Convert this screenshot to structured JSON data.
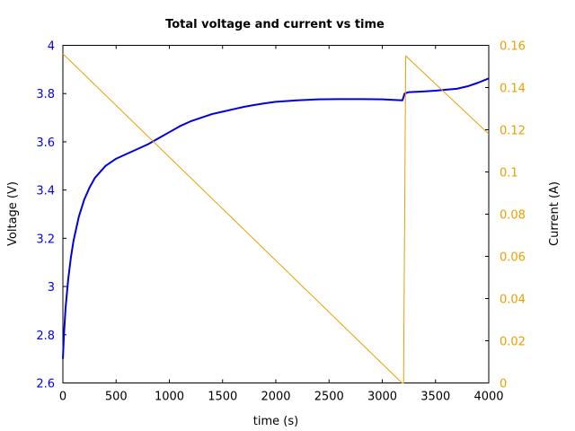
{
  "chart_data": {
    "type": "line",
    "title": "Total voltage and current vs time",
    "xlabel": "time (s)",
    "ylabel_left": "Voltage (V)",
    "ylabel_right": "Current (A)",
    "xlim": [
      0,
      4000
    ],
    "ylim_left": [
      2.6,
      4.0
    ],
    "ylim_right": [
      0,
      0.16
    ],
    "grid": false,
    "x_ticks": [
      "0",
      "500",
      "1000",
      "1500",
      "2000",
      "2500",
      "3000",
      "3500",
      "4000"
    ],
    "y_ticks_left": [
      "2.6",
      "2.8",
      "3",
      "3.2",
      "3.4",
      "3.6",
      "3.8",
      "4"
    ],
    "y_ticks_right": [
      "0",
      "0.02",
      "0.04",
      "0.06",
      "0.08",
      "0.1",
      "0.12",
      "0.14",
      "0.16"
    ],
    "colors": {
      "voltage": "#0000dd",
      "current": "#e8a000",
      "left_axis_ticks": "#0000ee",
      "right_axis_ticks": "#e8a000"
    },
    "series": [
      {
        "axis": "left",
        "x": [
          0,
          10,
          25,
          50,
          75,
          100,
          150,
          200,
          250,
          300,
          400,
          500,
          600,
          700,
          800,
          900,
          1000,
          1100,
          1200,
          1300,
          1400,
          1500,
          1600,
          1700,
          1800,
          1900,
          2000,
          2200,
          2400,
          2600,
          2800,
          3000,
          3100,
          3190,
          3210,
          3250,
          3300,
          3400,
          3500,
          3600,
          3700,
          3800,
          3900,
          4000
        ],
        "values": [
          2.7,
          2.8,
          2.91,
          3.03,
          3.12,
          3.19,
          3.29,
          3.36,
          3.41,
          3.45,
          3.5,
          3.53,
          3.55,
          3.57,
          3.59,
          3.615,
          3.64,
          3.665,
          3.685,
          3.7,
          3.715,
          3.725,
          3.735,
          3.745,
          3.753,
          3.76,
          3.766,
          3.772,
          3.776,
          3.777,
          3.777,
          3.776,
          3.774,
          3.772,
          3.8,
          3.806,
          3.807,
          3.809,
          3.812,
          3.816,
          3.82,
          3.83,
          3.845,
          3.863
        ]
      },
      {
        "axis": "right",
        "x": [
          0,
          3185,
          3200,
          3220,
          4000
        ],
        "values": [
          0.156,
          0.0,
          0.0,
          0.155,
          0.118
        ]
      }
    ]
  }
}
